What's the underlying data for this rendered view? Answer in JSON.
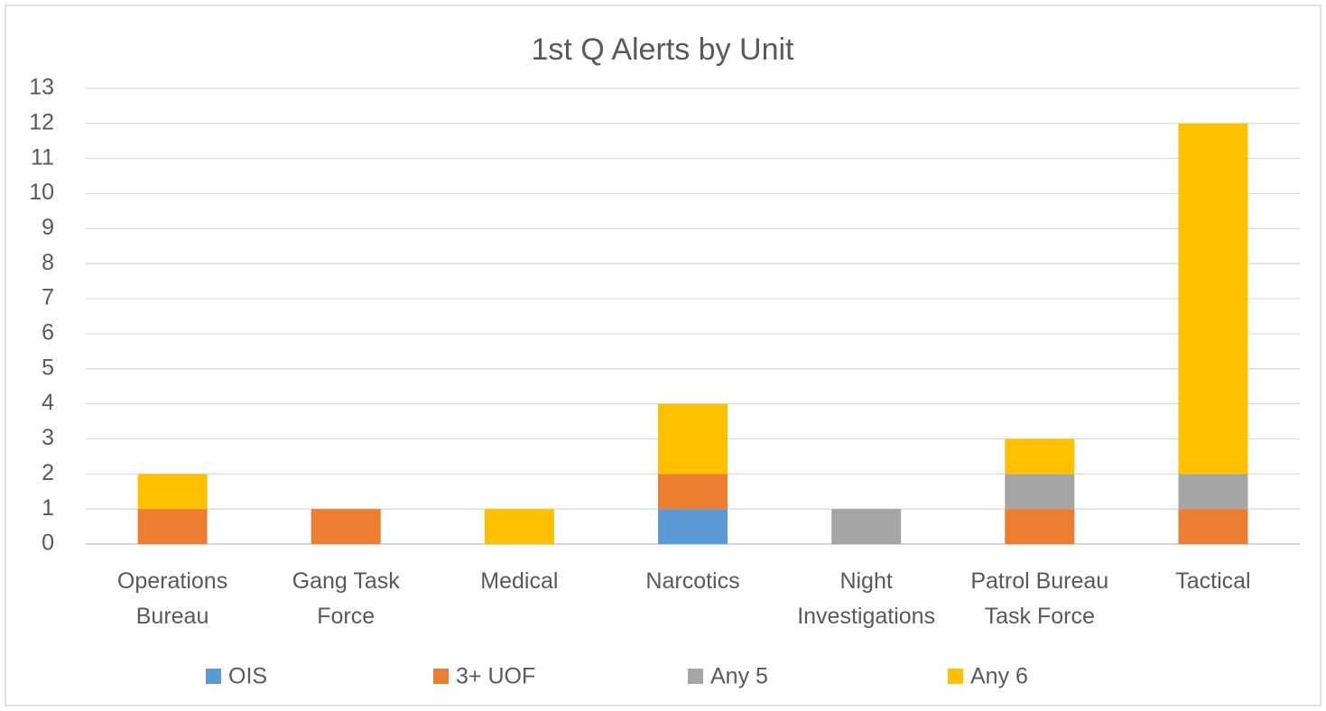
{
  "chart_data": {
    "type": "bar",
    "stacked": true,
    "title": "1st Q Alerts by Unit",
    "categories": [
      "Operations Bureau",
      "Gang Task Force",
      "Medical",
      "Narcotics",
      "Night Investigations",
      "Patrol Bureau Task Force",
      "Tactical"
    ],
    "series": [
      {
        "name": "OIS",
        "color": "#5b9bd5",
        "values": [
          0,
          0,
          0,
          1,
          0,
          0,
          0
        ]
      },
      {
        "name": "3+ UOF",
        "color": "#ed7d31",
        "values": [
          1,
          1,
          0,
          1,
          0,
          1,
          1
        ]
      },
      {
        "name": "Any 5",
        "color": "#a5a5a5",
        "values": [
          0,
          0,
          0,
          0,
          1,
          1,
          1
        ]
      },
      {
        "name": "Any 6",
        "color": "#ffc000",
        "values": [
          1,
          0,
          1,
          2,
          0,
          1,
          10
        ]
      }
    ],
    "ylim": [
      0,
      13
    ],
    "yticks": [
      0,
      1,
      2,
      3,
      4,
      5,
      6,
      7,
      8,
      9,
      10,
      11,
      12,
      13
    ],
    "grid": true,
    "legend": "bottom"
  }
}
